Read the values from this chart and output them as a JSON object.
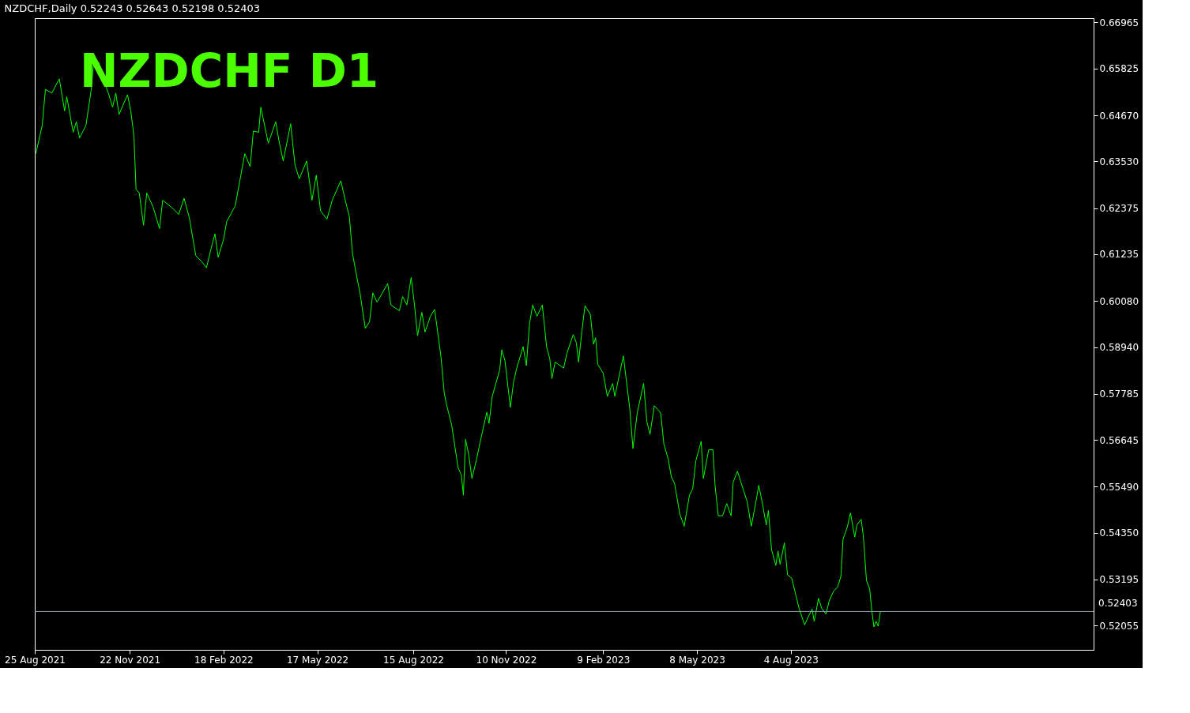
{
  "chart_data": {
    "type": "line",
    "title": "NZDCHF,Daily  0.52243 0.52643 0.52198 0.52403",
    "annotations": [
      "NZDCHF  D1"
    ],
    "x": [
      "2021-08-26",
      "2021-09-01",
      "2021-09-04",
      "2021-09-10",
      "2021-09-17",
      "2021-09-22",
      "2021-09-24",
      "2021-09-30",
      "2021-10-03",
      "2021-10-06",
      "2021-10-12",
      "2021-10-17",
      "2021-10-19",
      "2021-10-24",
      "2021-10-28",
      "2021-11-02",
      "2021-11-06",
      "2021-11-09",
      "2021-11-12",
      "2021-11-20",
      "2021-11-23",
      "2021-11-26",
      "2021-11-28",
      "2021-12-01",
      "2021-12-05",
      "2021-12-08",
      "2021-12-14",
      "2021-12-20",
      "2021-12-23",
      "2021-12-31",
      "2022-01-07",
      "2022-01-12",
      "2022-01-17",
      "2022-01-23",
      "2022-01-28",
      "2022-02-02",
      "2022-02-06",
      "2022-02-10",
      "2022-02-13",
      "2022-02-18",
      "2022-02-21",
      "2022-03-01",
      "2022-03-06",
      "2022-03-10",
      "2022-03-15",
      "2022-03-18",
      "2022-03-23",
      "2022-03-25",
      "2022-04-01",
      "2022-04-08",
      "2022-04-11",
      "2022-04-15",
      "2022-04-22",
      "2022-04-26",
      "2022-04-30",
      "2022-05-07",
      "2022-05-12",
      "2022-05-16",
      "2022-05-20",
      "2022-05-26",
      "2022-05-31",
      "2022-06-08",
      "2022-06-13",
      "2022-06-16",
      "2022-06-19",
      "2022-06-24",
      "2022-06-26",
      "2022-07-01",
      "2022-07-05",
      "2022-07-08",
      "2022-07-12",
      "2022-07-22",
      "2022-07-25",
      "2022-08-02",
      "2022-08-05",
      "2022-08-09",
      "2022-08-13",
      "2022-08-16",
      "2022-08-19",
      "2022-08-23",
      "2022-08-26",
      "2022-08-31",
      "2022-09-04",
      "2022-09-06",
      "2022-09-10",
      "2022-09-13",
      "2022-09-15",
      "2022-09-20",
      "2022-09-23",
      "2022-09-26",
      "2022-09-29",
      "2022-10-01",
      "2022-10-03",
      "2022-10-06",
      "2022-10-09",
      "2022-10-13",
      "2022-10-19",
      "2022-10-23",
      "2022-10-25",
      "2022-10-28",
      "2022-11-04",
      "2022-11-06",
      "2022-11-09",
      "2022-11-14",
      "2022-11-17",
      "2022-11-20",
      "2022-11-26",
      "2022-11-29",
      "2022-12-02",
      "2022-12-05",
      "2022-12-09",
      "2022-12-14",
      "2022-12-18",
      "2022-12-21",
      "2022-12-23",
      "2022-12-26",
      "2023-01-03",
      "2023-01-06",
      "2023-01-12",
      "2023-01-15",
      "2023-01-17",
      "2023-01-20",
      "2023-01-23",
      "2023-01-28",
      "2023-01-31",
      "2023-02-02",
      "2023-02-04",
      "2023-02-09",
      "2023-02-13",
      "2023-02-18",
      "2023-02-20",
      "2023-02-28",
      "2023-03-03",
      "2023-03-06",
      "2023-03-09",
      "2023-03-13",
      "2023-03-19",
      "2023-03-22",
      "2023-03-25",
      "2023-03-29",
      "2023-04-04",
      "2023-04-07",
      "2023-04-11",
      "2023-04-14",
      "2023-04-17",
      "2023-04-22",
      "2023-04-26",
      "2023-05-01",
      "2023-05-04",
      "2023-05-07",
      "2023-05-12",
      "2023-05-14",
      "2023-05-19",
      "2023-05-23",
      "2023-05-25",
      "2023-05-28",
      "2023-06-01",
      "2023-06-05",
      "2023-06-09",
      "2023-06-11",
      "2023-06-15",
      "2023-06-21",
      "2023-06-24",
      "2023-06-28",
      "2023-07-02",
      "2023-07-05",
      "2023-07-08",
      "2023-07-12",
      "2023-07-14",
      "2023-07-17",
      "2023-07-21",
      "2023-07-23",
      "2023-07-25",
      "2023-07-29",
      "2023-08-01",
      "2023-08-05",
      "2023-08-09",
      "2023-08-12",
      "2023-08-17",
      "2023-08-20",
      "2023-08-24",
      "2023-08-26",
      "2023-08-30",
      "2023-09-02",
      "2023-09-06",
      "2023-09-09",
      "2023-09-13",
      "2023-09-17",
      "2023-09-20",
      "2023-09-22",
      "2023-09-26",
      "2023-09-29",
      "2023-10-03",
      "2023-10-05",
      "2023-10-09",
      "2023-10-11",
      "2023-10-14",
      "2023-10-17",
      "2023-10-19",
      "2023-10-21",
      "2023-10-23",
      "2023-10-25",
      "2023-10-27"
    ],
    "series": [
      {
        "color": "#00ff00",
        "values": [
          0.6372,
          0.6442,
          0.6531,
          0.6522,
          0.6557,
          0.6478,
          0.6513,
          0.6425,
          0.6451,
          0.6411,
          0.6442,
          0.6531,
          0.6592,
          0.6598,
          0.6557,
          0.6522,
          0.6487,
          0.6522,
          0.6469,
          0.6518,
          0.6478,
          0.6416,
          0.6284,
          0.6275,
          0.6195,
          0.6275,
          0.624,
          0.6187,
          0.6257,
          0.624,
          0.6222,
          0.6262,
          0.6213,
          0.612,
          0.6107,
          0.609,
          0.6134,
          0.6174,
          0.6116,
          0.616,
          0.6204,
          0.6243,
          0.6315,
          0.6372,
          0.634,
          0.6428,
          0.6425,
          0.6487,
          0.6398,
          0.6451,
          0.6404,
          0.6354,
          0.6446,
          0.6345,
          0.631,
          0.6354,
          0.6257,
          0.6319,
          0.6231,
          0.621,
          0.6257,
          0.6305,
          0.6248,
          0.6217,
          0.6125,
          0.6054,
          0.6028,
          0.594,
          0.5957,
          0.6028,
          0.6005,
          0.6051,
          0.5998,
          0.5984,
          0.6019,
          0.5998,
          0.6066,
          0.6001,
          0.5922,
          0.598,
          0.5931,
          0.597,
          0.5987,
          0.5948,
          0.5869,
          0.5781,
          0.5754,
          0.5701,
          0.5648,
          0.5596,
          0.5578,
          0.5528,
          0.5666,
          0.5627,
          0.5569,
          0.5613,
          0.5687,
          0.5733,
          0.5705,
          0.5772,
          0.5837,
          0.5887,
          0.586,
          0.5745,
          0.5807,
          0.5842,
          0.5895,
          0.5848,
          0.5952,
          0.5998,
          0.597,
          0.5998,
          0.5895,
          0.5865,
          0.5816,
          0.5857,
          0.5842,
          0.5878,
          0.5925,
          0.5904,
          0.5857,
          0.5931,
          0.5996,
          0.5975,
          0.5901,
          0.5917,
          0.5851,
          0.583,
          0.5772,
          0.5804,
          0.5772,
          0.5872,
          0.5807,
          0.5742,
          0.5643,
          0.5731,
          0.5804,
          0.571,
          0.5678,
          0.5749,
          0.5731,
          0.5654,
          0.5618,
          0.5573,
          0.5557,
          0.5481,
          0.5451,
          0.5528,
          0.5543,
          0.5613,
          0.5661,
          0.5569,
          0.564,
          0.564,
          0.5552,
          0.5477,
          0.5477,
          0.5507,
          0.5477,
          0.556,
          0.5587,
          0.5537,
          0.5513,
          0.5451,
          0.5507,
          0.5552,
          0.5513,
          0.5454,
          0.549,
          0.5393,
          0.5354,
          0.539,
          0.5357,
          0.541,
          0.5331,
          0.5322,
          0.5278,
          0.5246,
          0.5207,
          0.5225,
          0.5246,
          0.5216,
          0.5273,
          0.5248,
          0.5234,
          0.5266,
          0.529,
          0.5301,
          0.5327,
          0.5419,
          0.5449,
          0.5484,
          0.5424,
          0.5454,
          0.5468,
          0.5428,
          0.5317,
          0.5296,
          0.5243,
          0.5202,
          0.5216,
          0.5204,
          0.524
        ]
      }
    ],
    "xlim": [
      "2021-08-25",
      "2024-05-14"
    ],
    "xticks": [
      {
        "value": "2021-08-25",
        "label": "25 Aug 2021"
      },
      {
        "value": "2021-11-22",
        "label": "22 Nov 2021"
      },
      {
        "value": "2022-02-18",
        "label": "18 Feb 2022"
      },
      {
        "value": "2022-05-17",
        "label": "17 May 2022"
      },
      {
        "value": "2022-08-15",
        "label": "15 Aug 2022"
      },
      {
        "value": "2022-11-10",
        "label": "10 Nov 2022"
      },
      {
        "value": "2023-02-09",
        "label": "9 Feb 2023"
      },
      {
        "value": "2023-05-08",
        "label": "8 May 2023"
      },
      {
        "value": "2023-08-04",
        "label": "4 Aug 2023"
      }
    ],
    "ylim": [
      0.51455,
      0.67071
    ],
    "yticks": [
      0.66965,
      0.65825,
      {
        "value": 0.6467,
        "label": "0.64670"
      },
      {
        "value": 0.6353,
        "label": "0.63530"
      },
      0.62375,
      0.61235,
      {
        "value": 0.6008,
        "label": "0.60080"
      },
      {
        "value": 0.5894,
        "label": "0.58940"
      },
      0.57785,
      0.56645,
      {
        "value": 0.5549,
        "label": "0.55490"
      },
      {
        "value": 0.5435,
        "label": "0.54350"
      },
      0.53195,
      0.52055
    ],
    "ref_lines": [
      {
        "axis": "y",
        "value": 0.52403,
        "label": "0.52403",
        "color": "#8da0b6"
      }
    ]
  }
}
